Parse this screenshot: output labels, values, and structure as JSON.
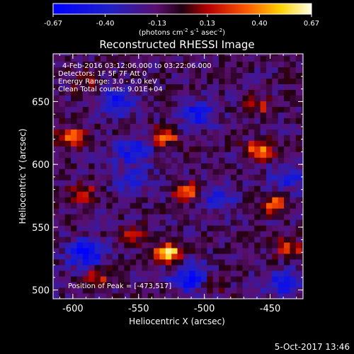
{
  "colorbar": {
    "ticks": [
      "-0.67",
      "-0.40",
      "-0.13",
      "0.13",
      "0.40",
      "0.67"
    ],
    "values": [
      -0.67,
      -0.4,
      -0.13,
      0.13,
      0.4,
      0.67
    ],
    "units_prefix": "(photons cm",
    "units_sup1": "-2",
    "units_mid": " s",
    "units_sup2": "-1",
    "units_mid2": " asec",
    "units_sup3": "-2",
    "units_suffix": ")"
  },
  "chart_data": {
    "type": "heatmap",
    "title": "Reconstructed RHESSI Image",
    "xlabel": "Heliocentric X (arcsec)",
    "ylabel": "Heliocentric Y (arcsec)",
    "xlim": [
      -615,
      -425
    ],
    "ylim": [
      493,
      688
    ],
    "xticks": [
      -600,
      -550,
      -500,
      -450
    ],
    "yticks": [
      500,
      550,
      600,
      650
    ],
    "xtick_labels": [
      "-600",
      "-550",
      "-500",
      "-450"
    ],
    "ytick_labels": [
      "500",
      "550",
      "600",
      "650"
    ],
    "colormap": "blue-purple-red-yellow-white",
    "value_range": [
      -0.67,
      0.67
    ],
    "info_lines": [
      "4-Feb-2016 03:12:06.000 to 03:22:06.000",
      "Detectors: 1F 5F 7F  Att 0",
      "Energy Range: 3.0 - 6.0 keV",
      "Clean     Total counts: 9.01E+04"
    ],
    "peak_label": "Position of Peak = [-473,517]",
    "peak": [
      -473,
      517
    ],
    "features": [
      {
        "x": -527,
        "y": 530,
        "value": 0.67
      },
      {
        "x": -530,
        "y": 622,
        "value": 0.45
      },
      {
        "x": -512,
        "y": 578,
        "value": 0.4
      },
      {
        "x": -458,
        "y": 612,
        "value": 0.5
      },
      {
        "x": -600,
        "y": 622,
        "value": 0.45
      },
      {
        "x": -592,
        "y": 578,
        "value": 0.3
      },
      {
        "x": -447,
        "y": 568,
        "value": 0.45
      },
      {
        "x": -436,
        "y": 533,
        "value": 0.35
      },
      {
        "x": -580,
        "y": 510,
        "value": 0.3
      },
      {
        "x": -555,
        "y": 545,
        "value": 0.25
      },
      {
        "x": -589,
        "y": 664,
        "value": 0.2
      },
      {
        "x": -495,
        "y": 505,
        "value": 0.25
      },
      {
        "x": -458,
        "y": 647,
        "value": 0.25
      },
      {
        "x": -590,
        "y": 530,
        "value": -0.5
      },
      {
        "x": -510,
        "y": 510,
        "value": -0.5
      },
      {
        "x": -553,
        "y": 610,
        "value": -0.4
      },
      {
        "x": -505,
        "y": 640,
        "value": -0.4
      },
      {
        "x": -568,
        "y": 650,
        "value": -0.4
      },
      {
        "x": -440,
        "y": 505,
        "value": -0.4
      },
      {
        "x": -490,
        "y": 575,
        "value": -0.3
      },
      {
        "x": -435,
        "y": 590,
        "value": -0.3
      },
      {
        "x": -555,
        "y": 585,
        "value": -0.25
      }
    ]
  },
  "footer": {
    "date": "5-Oct-2017 13:46"
  }
}
